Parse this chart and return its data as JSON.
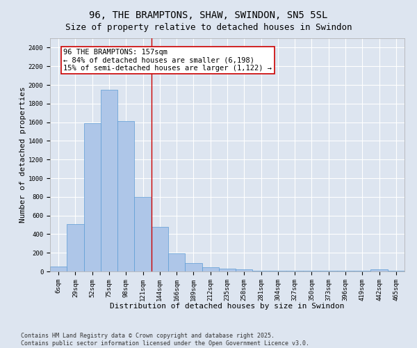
{
  "title": "96, THE BRAMPTONS, SHAW, SWINDON, SN5 5SL",
  "subtitle": "Size of property relative to detached houses in Swindon",
  "xlabel": "Distribution of detached houses by size in Swindon",
  "ylabel": "Number of detached properties",
  "bar_color": "#aec6e8",
  "bar_edge_color": "#5b9bd5",
  "background_color": "#dde5f0",
  "grid_color": "#ffffff",
  "categories": [
    "6sqm",
    "29sqm",
    "52sqm",
    "75sqm",
    "98sqm",
    "121sqm",
    "144sqm",
    "166sqm",
    "189sqm",
    "212sqm",
    "235sqm",
    "258sqm",
    "281sqm",
    "304sqm",
    "327sqm",
    "350sqm",
    "373sqm",
    "396sqm",
    "419sqm",
    "442sqm",
    "465sqm"
  ],
  "values": [
    55,
    510,
    1590,
    1950,
    1610,
    800,
    480,
    195,
    90,
    45,
    30,
    20,
    10,
    5,
    5,
    5,
    5,
    5,
    5,
    25,
    5
  ],
  "ylim": [
    0,
    2500
  ],
  "yticks": [
    0,
    200,
    400,
    600,
    800,
    1000,
    1200,
    1400,
    1600,
    1800,
    2000,
    2200,
    2400
  ],
  "vline_x_idx": 5.5,
  "vline_color": "#cc0000",
  "annotation_title": "96 THE BRAMPTONS: 157sqm",
  "annotation_line1": "← 84% of detached houses are smaller (6,198)",
  "annotation_line2": "15% of semi-detached houses are larger (1,122) →",
  "annotation_box_color": "#cc0000",
  "footer_line1": "Contains HM Land Registry data © Crown copyright and database right 2025.",
  "footer_line2": "Contains public sector information licensed under the Open Government Licence v3.0.",
  "title_fontsize": 10,
  "axis_label_fontsize": 8,
  "tick_fontsize": 6.5,
  "annotation_fontsize": 7.5,
  "footer_fontsize": 6
}
